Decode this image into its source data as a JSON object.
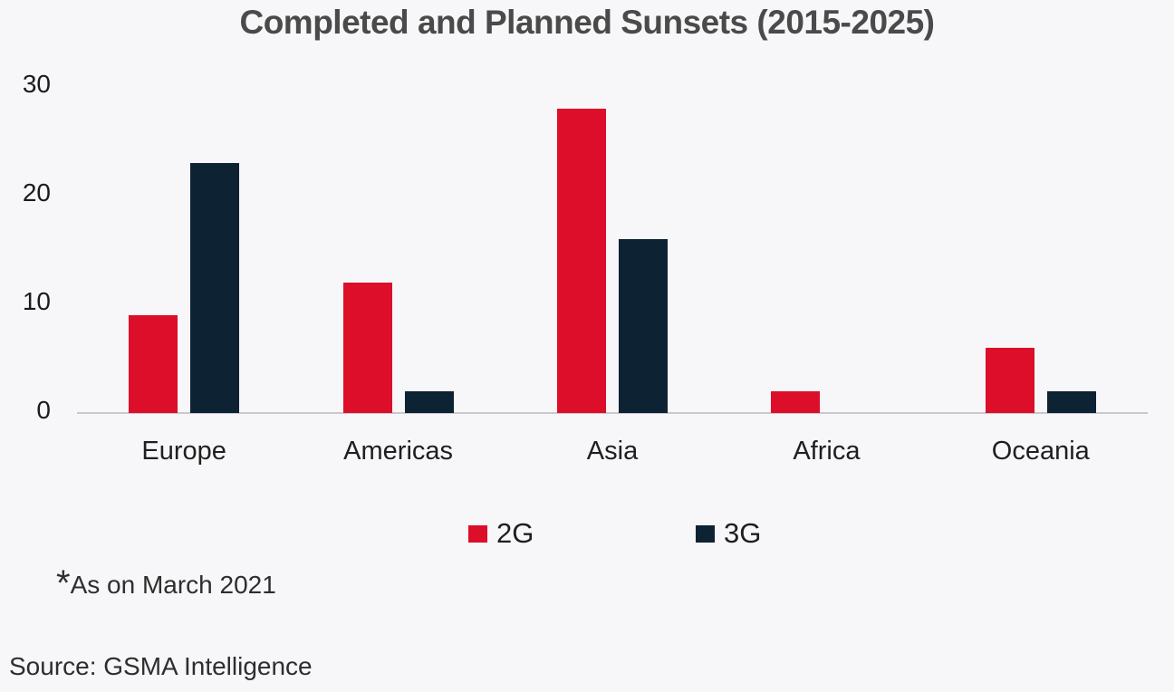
{
  "chart_data": {
    "type": "bar",
    "title": "Completed and Planned Sunsets (2015-2025)",
    "categories": [
      "Europe",
      "Americas",
      "Asia",
      "Africa",
      "Oceania"
    ],
    "series": [
      {
        "name": "2G",
        "color": "#dc0e2a",
        "values": [
          9,
          12,
          28,
          2,
          6
        ]
      },
      {
        "name": "3G",
        "color": "#0d2233",
        "values": [
          23,
          2,
          16,
          0,
          2
        ]
      }
    ],
    "xlabel": "",
    "ylabel": "",
    "ylim": [
      0,
      30
    ],
    "yticks": [
      0,
      10,
      20,
      30
    ],
    "grid": false,
    "legend_position": "bottom"
  },
  "footnote": {
    "asterisk": "*",
    "text": "As on March 2021"
  },
  "source": {
    "text": "Source: GSMA Intelligence"
  },
  "colors": {
    "background": "#f7f6f8",
    "axis_line": "#c9c9cd",
    "title_text": "#4a4a4a",
    "tick_text": "#1b1b1b",
    "series_2g": "#dc0e2a",
    "series_3g": "#0d2233"
  }
}
